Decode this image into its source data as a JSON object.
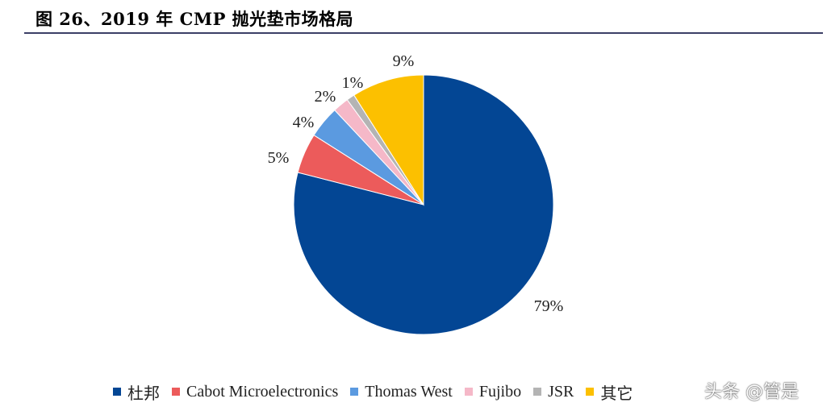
{
  "header": {
    "title": "图 26、2019 年 CMP 抛光垫市场格局"
  },
  "chart_data": {
    "type": "pie",
    "title": "",
    "start_angle_deg": 90,
    "direction": "clockwise",
    "slices": [
      {
        "name": "杜邦",
        "value": 79,
        "label": "79%",
        "color": "#034694"
      },
      {
        "name": "Cabot Microelectronics",
        "value": 5,
        "label": "5%",
        "color": "#ec5b5b"
      },
      {
        "name": "Thomas West",
        "value": 4,
        "label": "4%",
        "color": "#5b9ae0"
      },
      {
        "name": "Fujibo",
        "value": 2,
        "label": "2%",
        "color": "#f5b8c8"
      },
      {
        "name": "JSR",
        "value": 1,
        "label": "1%",
        "color": "#b4b4b4"
      },
      {
        "name": "其它",
        "value": 9,
        "label": "9%",
        "color": "#fcc000"
      }
    ],
    "legend_position": "bottom"
  },
  "watermark": {
    "text": "头条 @管是"
  }
}
